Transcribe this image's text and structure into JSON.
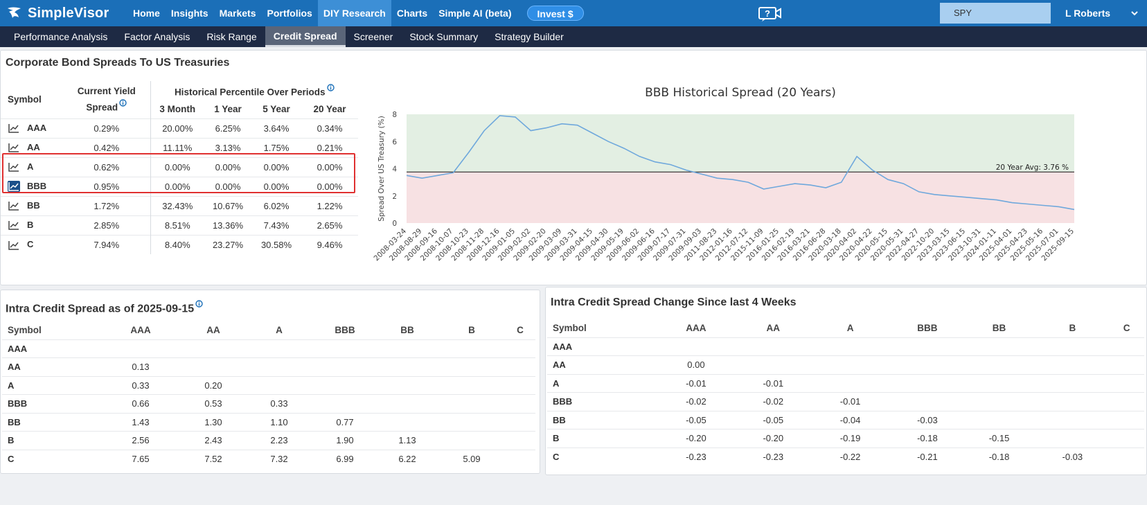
{
  "app": {
    "brand": "SimpleVisor",
    "nav": [
      "Home",
      "Insights",
      "Markets",
      "Portfolios",
      "DIY Research",
      "Charts",
      "Simple AI (beta)"
    ],
    "nav_active": "DIY Research",
    "invest_label": "Invest $",
    "search_value": "SPY",
    "user_name": "L Roberts"
  },
  "subnav": {
    "items": [
      "Performance Analysis",
      "Factor Analysis",
      "Risk Range",
      "Credit Spread",
      "Screener",
      "Stock Summary",
      "Strategy Builder"
    ],
    "active": "Credit Spread"
  },
  "spreads_panel": {
    "title": "Corporate Bond Spreads To US Treasuries",
    "col_symbol": "Symbol",
    "col_current_1": "Current Yield",
    "col_current_2": "Spread",
    "col_hist": "Historical Percentile Over Periods",
    "periods": [
      "3 Month",
      "1 Year",
      "5 Year",
      "20 Year"
    ],
    "rows": [
      {
        "symbol": "AAA",
        "spread": "0.29%",
        "p3m": "20.00%",
        "p1y": "6.25%",
        "p5y": "3.64%",
        "p20y": "0.34%"
      },
      {
        "symbol": "AA",
        "spread": "0.42%",
        "p3m": "11.11%",
        "p1y": "3.13%",
        "p5y": "1.75%",
        "p20y": "0.21%"
      },
      {
        "symbol": "A",
        "spread": "0.62%",
        "p3m": "0.00%",
        "p1y": "0.00%",
        "p5y": "0.00%",
        "p20y": "0.00%"
      },
      {
        "symbol": "BBB",
        "spread": "0.95%",
        "p3m": "0.00%",
        "p1y": "0.00%",
        "p5y": "0.00%",
        "p20y": "0.00%"
      },
      {
        "symbol": "BB",
        "spread": "1.72%",
        "p3m": "32.43%",
        "p1y": "10.67%",
        "p5y": "6.02%",
        "p20y": "1.22%"
      },
      {
        "symbol": "B",
        "spread": "2.85%",
        "p3m": "8.51%",
        "p1y": "13.36%",
        "p5y": "7.43%",
        "p20y": "2.65%"
      },
      {
        "symbol": "C",
        "spread": "7.94%",
        "p3m": "8.40%",
        "p1y": "23.27%",
        "p5y": "30.58%",
        "p20y": "9.46%"
      }
    ],
    "selected_symbol": "BBB"
  },
  "chart_data": {
    "type": "line",
    "title": "BBB Historical Spread (20 Years)",
    "ylabel": "Spread Over US Treasury (%)",
    "xlabel": "",
    "ylim": [
      0,
      8
    ],
    "yticks": [
      "0",
      "2",
      "4",
      "6",
      "8"
    ],
    "average": {
      "value": 3.76,
      "label": "20 Year Avg: 3.76 %"
    },
    "above_avg_color": "#e3efe3",
    "below_avg_color": "#f7e1e3",
    "line_color": "#6fa8dc",
    "x": [
      "2008-03-24",
      "2008-08-29",
      "2008-09-16",
      "2008-10-07",
      "2008-10-23",
      "2008-11-28",
      "2008-12-16",
      "2009-01-05",
      "2009-02-02",
      "2009-02-20",
      "2009-03-09",
      "2009-03-31",
      "2009-04-15",
      "2009-04-30",
      "2009-05-19",
      "2009-06-02",
      "2009-06-16",
      "2009-07-17",
      "2009-07-31",
      "2009-09-03",
      "2011-08-23",
      "2012-01-16",
      "2012-07-12",
      "2015-11-09",
      "2016-01-25",
      "2016-02-19",
      "2016-03-21",
      "2016-06-28",
      "2020-03-18",
      "2020-04-02",
      "2020-04-22",
      "2020-05-15",
      "2020-05-31",
      "2022-04-27",
      "2022-10-20",
      "2023-03-15",
      "2023-06-15",
      "2023-10-31",
      "2024-01-11",
      "2025-04-01",
      "2025-04-23",
      "2025-05-16",
      "2025-07-01",
      "2025-09-15"
    ],
    "values": [
      3.5,
      3.3,
      3.5,
      3.7,
      5.2,
      6.8,
      7.9,
      7.8,
      6.8,
      7.0,
      7.3,
      7.2,
      6.6,
      6.0,
      5.5,
      4.9,
      4.5,
      4.3,
      3.9,
      3.6,
      3.3,
      3.2,
      3.0,
      2.5,
      2.7,
      2.9,
      2.8,
      2.6,
      3.0,
      4.9,
      3.9,
      3.2,
      2.9,
      2.3,
      2.1,
      2.0,
      1.9,
      1.8,
      1.7,
      1.5,
      1.4,
      1.3,
      1.2,
      1.0
    ]
  },
  "intra_panel": {
    "title": "Intra Credit Spread as of 2025-09-15",
    "columns": [
      "Symbol",
      "AAA",
      "AA",
      "A",
      "BBB",
      "BB",
      "B",
      "C"
    ],
    "rows": [
      [
        "AAA",
        "",
        "",
        "",
        "",
        "",
        "",
        ""
      ],
      [
        "AA",
        "0.13",
        "",
        "",
        "",
        "",
        "",
        ""
      ],
      [
        "A",
        "0.33",
        "0.20",
        "",
        "",
        "",
        "",
        ""
      ],
      [
        "BBB",
        "0.66",
        "0.53",
        "0.33",
        "",
        "",
        "",
        ""
      ],
      [
        "BB",
        "1.43",
        "1.30",
        "1.10",
        "0.77",
        "",
        "",
        ""
      ],
      [
        "B",
        "2.56",
        "2.43",
        "2.23",
        "1.90",
        "1.13",
        "",
        ""
      ],
      [
        "C",
        "7.65",
        "7.52",
        "7.32",
        "6.99",
        "6.22",
        "5.09",
        ""
      ]
    ]
  },
  "change_panel": {
    "title": "Intra Credit Spread Change Since last 4 Weeks",
    "columns": [
      "Symbol",
      "AAA",
      "AA",
      "A",
      "BBB",
      "BB",
      "B",
      "C"
    ],
    "rows": [
      [
        "AAA",
        "",
        "",
        "",
        "",
        "",
        "",
        ""
      ],
      [
        "AA",
        "0.00",
        "",
        "",
        "",
        "",
        "",
        ""
      ],
      [
        "A",
        "-0.01",
        "-0.01",
        "",
        "",
        "",
        "",
        ""
      ],
      [
        "BBB",
        "-0.02",
        "-0.02",
        "-0.01",
        "",
        "",
        "",
        ""
      ],
      [
        "BB",
        "-0.05",
        "-0.05",
        "-0.04",
        "-0.03",
        "",
        "",
        ""
      ],
      [
        "B",
        "-0.20",
        "-0.20",
        "-0.19",
        "-0.18",
        "-0.15",
        "",
        ""
      ],
      [
        "C",
        "-0.23",
        "-0.23",
        "-0.22",
        "-0.21",
        "-0.18",
        "-0.03",
        ""
      ]
    ]
  }
}
